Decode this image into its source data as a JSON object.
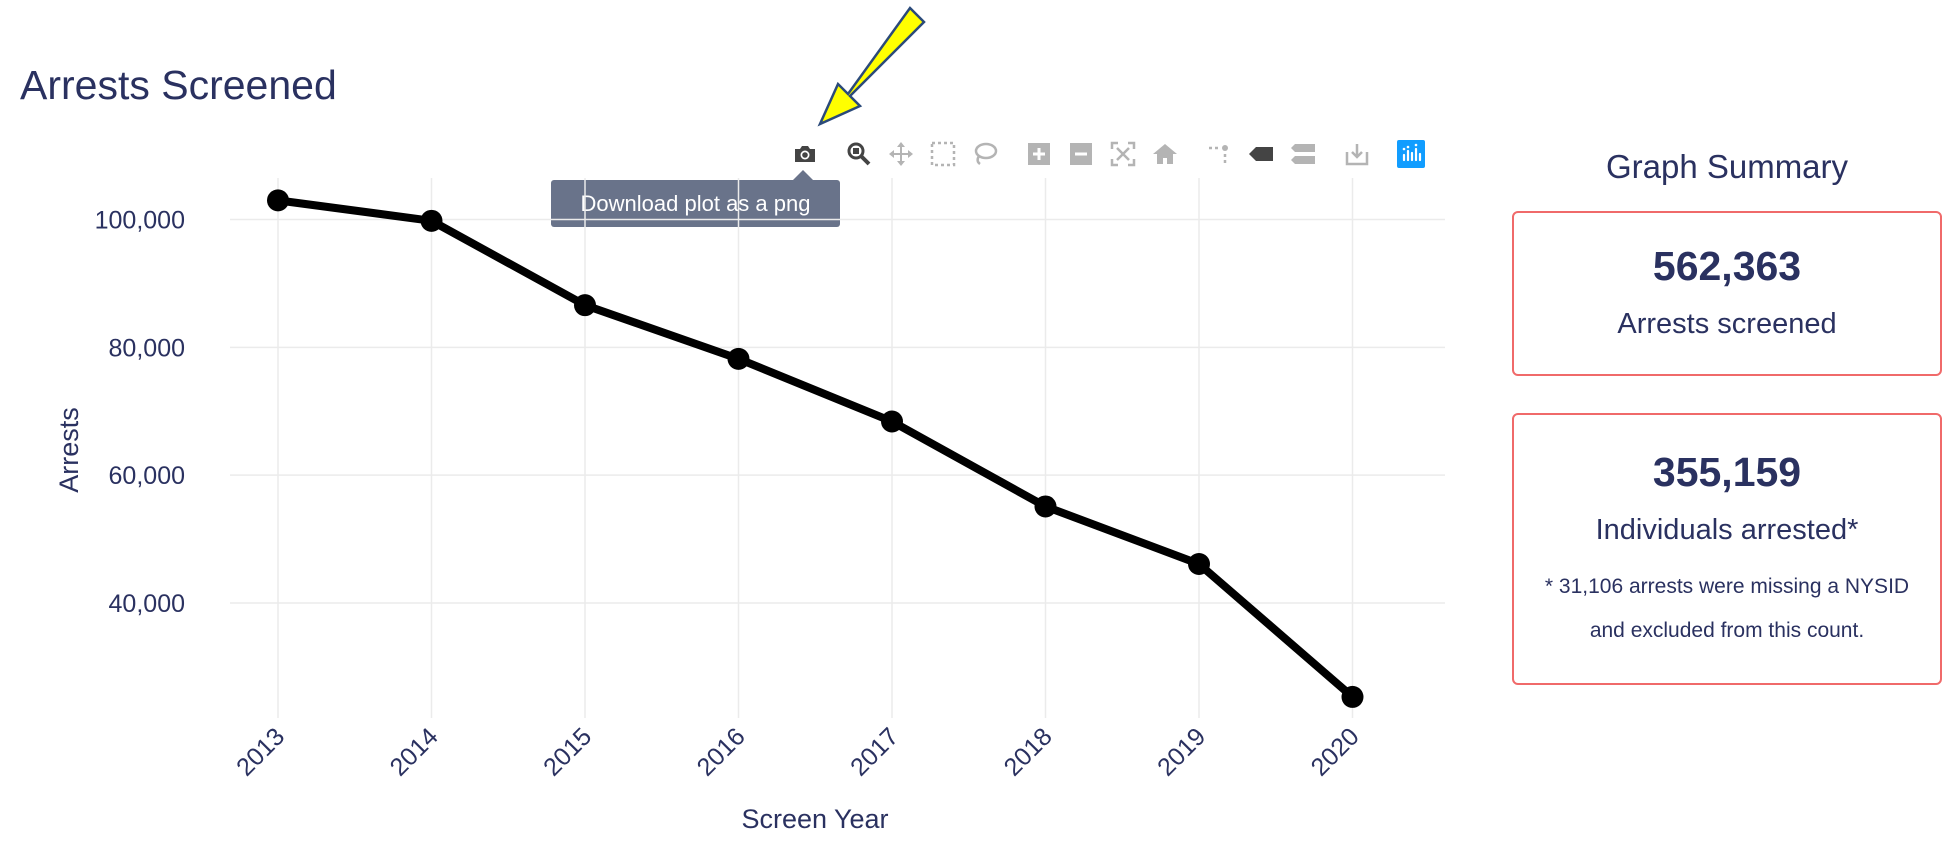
{
  "page": {
    "title": "Arrests Screened"
  },
  "tooltip": {
    "text": "Download plot as a png"
  },
  "modebar": {
    "buttons": [
      "camera-icon",
      "zoom-icon",
      "pan-icon",
      "box-select-icon",
      "lasso-select-icon",
      "zoom-in-icon",
      "zoom-out-icon",
      "autoscale-icon",
      "reset-axes-icon",
      "spike-lines-icon",
      "hover-closest-icon",
      "hover-compare-icon",
      "download-icon",
      "plotly-logo-icon"
    ],
    "active_color": "#444444",
    "inactive_color": "#b4b4b4",
    "logo_color": "#119dff"
  },
  "annotation": {
    "arrow_fill": "#ffff00",
    "arrow_stroke": "#2b4a7a"
  },
  "chart_data": {
    "type": "line",
    "x": [
      "2013",
      "2014",
      "2015",
      "2016",
      "2017",
      "2018",
      "2019",
      "2020"
    ],
    "series": [
      {
        "values": [
          103000,
          99800,
          86600,
          78200,
          68400,
          55100,
          46100,
          25300
        ],
        "color": "#000000"
      }
    ],
    "title": "",
    "xlabel": "Screen Year",
    "ylabel": "Arrests",
    "yticks": [
      40000,
      60000,
      80000,
      100000
    ],
    "ytick_labels": [
      "40,000",
      "60,000",
      "80,000",
      "100,000"
    ],
    "ylim": [
      22000,
      106500
    ],
    "grid": true,
    "legend": "none"
  },
  "summary": {
    "title": "Graph Summary",
    "cards": [
      {
        "value": "562,363",
        "label": "Arrests screened"
      },
      {
        "value": "355,159",
        "label": "Individuals arrested*",
        "note_line1": "* 31,106 arrests were missing a NYSID",
        "note_line2": "and excluded from this count."
      }
    ],
    "border_color": "#f06a6a"
  }
}
